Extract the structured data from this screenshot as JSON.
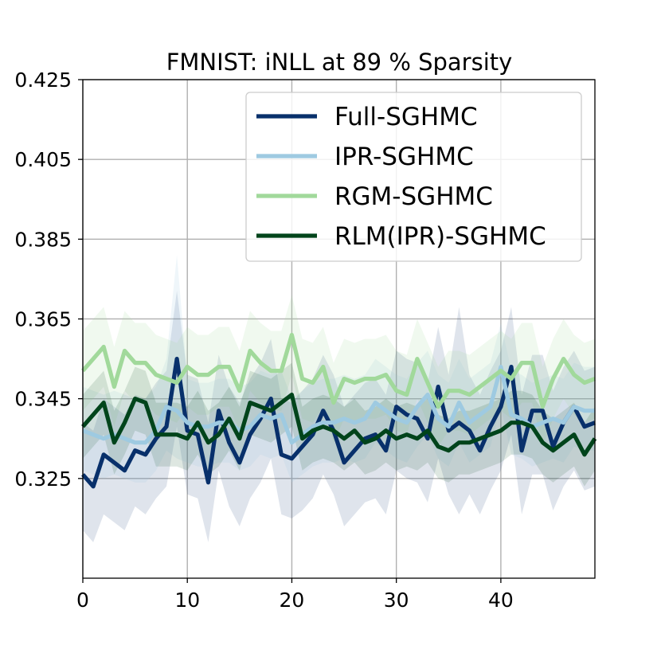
{
  "chart_data": {
    "type": "line",
    "title": "FMNIST: iNLL at 89 % Sparsity",
    "xlabel": "",
    "ylabel": "",
    "xlim": [
      0,
      49
    ],
    "ylim": [
      0.3,
      0.425
    ],
    "xticks": [
      0,
      10,
      20,
      30,
      40
    ],
    "yticks": [
      0.325,
      0.345,
      0.365,
      0.385,
      0.405,
      0.425
    ],
    "xtick_labels": [
      "0",
      "10",
      "20",
      "30",
      "40"
    ],
    "ytick_labels": [
      "0.325",
      "0.345",
      "0.365",
      "0.385",
      "0.405",
      "0.425"
    ],
    "grid": true,
    "legend_position": "upper-right",
    "x": [
      0,
      1,
      2,
      3,
      4,
      5,
      6,
      7,
      8,
      9,
      10,
      11,
      12,
      13,
      14,
      15,
      16,
      17,
      18,
      19,
      20,
      21,
      22,
      23,
      24,
      25,
      26,
      27,
      28,
      29,
      30,
      31,
      32,
      33,
      34,
      35,
      36,
      37,
      38,
      39,
      40,
      41,
      42,
      43,
      44,
      45,
      46,
      47,
      48,
      49
    ],
    "series": [
      {
        "name": "Full-SGHMC",
        "color": "#08306b",
        "band_opacity": 0.13,
        "values": [
          0.326,
          0.323,
          0.331,
          0.329,
          0.327,
          0.332,
          0.331,
          0.335,
          0.338,
          0.355,
          0.337,
          0.336,
          0.324,
          0.342,
          0.334,
          0.329,
          0.336,
          0.34,
          0.345,
          0.331,
          0.33,
          0.333,
          0.336,
          0.342,
          0.337,
          0.329,
          0.332,
          0.335,
          0.336,
          0.332,
          0.343,
          0.341,
          0.34,
          0.335,
          0.348,
          0.337,
          0.339,
          0.337,
          0.332,
          0.338,
          0.343,
          0.353,
          0.332,
          0.342,
          0.342,
          0.333,
          0.339,
          0.343,
          0.338,
          0.339
        ],
        "lower": [
          0.312,
          0.309,
          0.316,
          0.314,
          0.312,
          0.318,
          0.316,
          0.32,
          0.323,
          0.338,
          0.321,
          0.32,
          0.309,
          0.327,
          0.318,
          0.313,
          0.32,
          0.324,
          0.33,
          0.316,
          0.315,
          0.317,
          0.32,
          0.326,
          0.321,
          0.313,
          0.316,
          0.319,
          0.32,
          0.316,
          0.327,
          0.325,
          0.324,
          0.319,
          0.33,
          0.321,
          0.316,
          0.321,
          0.316,
          0.322,
          0.327,
          0.336,
          0.316,
          0.326,
          0.326,
          0.317,
          0.323,
          0.327,
          0.322,
          0.323
        ],
        "upper": [
          0.339,
          0.337,
          0.345,
          0.343,
          0.341,
          0.346,
          0.345,
          0.349,
          0.352,
          0.372,
          0.351,
          0.35,
          0.339,
          0.356,
          0.348,
          0.344,
          0.35,
          0.354,
          0.36,
          0.345,
          0.344,
          0.347,
          0.35,
          0.356,
          0.351,
          0.343,
          0.346,
          0.349,
          0.35,
          0.346,
          0.357,
          0.355,
          0.354,
          0.349,
          0.363,
          0.351,
          0.368,
          0.351,
          0.346,
          0.352,
          0.357,
          0.368,
          0.346,
          0.356,
          0.356,
          0.347,
          0.353,
          0.357,
          0.352,
          0.353
        ]
      },
      {
        "name": "IPR-SGHMC",
        "color": "#9ecae1",
        "band_opacity": 0.16,
        "values": [
          0.337,
          0.336,
          0.335,
          0.336,
          0.335,
          0.334,
          0.334,
          0.337,
          0.343,
          0.342,
          0.339,
          0.338,
          0.338,
          0.339,
          0.339,
          0.337,
          0.338,
          0.341,
          0.34,
          0.341,
          0.334,
          0.336,
          0.338,
          0.339,
          0.339,
          0.34,
          0.339,
          0.34,
          0.344,
          0.342,
          0.34,
          0.339,
          0.343,
          0.346,
          0.34,
          0.338,
          0.344,
          0.339,
          0.341,
          0.343,
          0.353,
          0.341,
          0.34,
          0.338,
          0.339,
          0.34,
          0.339,
          0.343,
          0.342,
          0.342
        ],
        "lower": [
          0.327,
          0.326,
          0.325,
          0.326,
          0.325,
          0.324,
          0.324,
          0.327,
          0.332,
          0.33,
          0.329,
          0.328,
          0.328,
          0.329,
          0.329,
          0.327,
          0.328,
          0.331,
          0.33,
          0.331,
          0.324,
          0.326,
          0.328,
          0.329,
          0.329,
          0.33,
          0.329,
          0.33,
          0.334,
          0.332,
          0.33,
          0.329,
          0.333,
          0.336,
          0.33,
          0.328,
          0.334,
          0.329,
          0.331,
          0.333,
          0.343,
          0.331,
          0.33,
          0.328,
          0.329,
          0.33,
          0.329,
          0.333,
          0.332,
          0.332
        ],
        "upper": [
          0.348,
          0.347,
          0.346,
          0.347,
          0.346,
          0.345,
          0.345,
          0.348,
          0.355,
          0.381,
          0.35,
          0.349,
          0.349,
          0.35,
          0.35,
          0.348,
          0.349,
          0.352,
          0.351,
          0.352,
          0.345,
          0.347,
          0.349,
          0.35,
          0.35,
          0.351,
          0.35,
          0.351,
          0.355,
          0.353,
          0.351,
          0.35,
          0.354,
          0.357,
          0.351,
          0.349,
          0.355,
          0.35,
          0.352,
          0.354,
          0.364,
          0.352,
          0.351,
          0.349,
          0.35,
          0.351,
          0.35,
          0.354,
          0.353,
          0.353
        ]
      },
      {
        "name": "RGM-SGHMC",
        "color": "#a1d99b",
        "band_opacity": 0.16,
        "values": [
          0.352,
          0.355,
          0.358,
          0.348,
          0.357,
          0.354,
          0.354,
          0.351,
          0.35,
          0.349,
          0.353,
          0.351,
          0.351,
          0.353,
          0.353,
          0.347,
          0.357,
          0.354,
          0.352,
          0.352,
          0.361,
          0.35,
          0.349,
          0.353,
          0.344,
          0.35,
          0.349,
          0.35,
          0.35,
          0.351,
          0.347,
          0.346,
          0.355,
          0.349,
          0.343,
          0.347,
          0.347,
          0.346,
          0.348,
          0.35,
          0.352,
          0.35,
          0.354,
          0.354,
          0.343,
          0.35,
          0.355,
          0.351,
          0.349,
          0.35
        ],
        "lower": [
          0.342,
          0.345,
          0.348,
          0.338,
          0.347,
          0.344,
          0.344,
          0.341,
          0.34,
          0.339,
          0.343,
          0.341,
          0.341,
          0.343,
          0.343,
          0.337,
          0.347,
          0.344,
          0.342,
          0.342,
          0.351,
          0.34,
          0.339,
          0.343,
          0.334,
          0.34,
          0.339,
          0.34,
          0.34,
          0.341,
          0.337,
          0.336,
          0.345,
          0.339,
          0.333,
          0.337,
          0.337,
          0.336,
          0.338,
          0.34,
          0.342,
          0.34,
          0.344,
          0.344,
          0.333,
          0.34,
          0.345,
          0.341,
          0.339,
          0.34
        ],
        "upper": [
          0.362,
          0.365,
          0.368,
          0.358,
          0.367,
          0.364,
          0.364,
          0.361,
          0.36,
          0.359,
          0.363,
          0.361,
          0.361,
          0.363,
          0.363,
          0.357,
          0.367,
          0.364,
          0.362,
          0.362,
          0.371,
          0.36,
          0.359,
          0.363,
          0.354,
          0.36,
          0.359,
          0.36,
          0.36,
          0.361,
          0.357,
          0.356,
          0.365,
          0.359,
          0.353,
          0.357,
          0.357,
          0.356,
          0.358,
          0.36,
          0.362,
          0.36,
          0.364,
          0.364,
          0.353,
          0.36,
          0.365,
          0.361,
          0.359,
          0.36
        ]
      },
      {
        "name": "RLM(IPR)-SGHMC",
        "color": "#00441b",
        "band_opacity": 0.13,
        "values": [
          0.338,
          0.341,
          0.344,
          0.334,
          0.339,
          0.345,
          0.344,
          0.336,
          0.336,
          0.336,
          0.335,
          0.339,
          0.334,
          0.336,
          0.34,
          0.335,
          0.344,
          0.343,
          0.342,
          0.344,
          0.346,
          0.335,
          0.337,
          0.338,
          0.337,
          0.335,
          0.337,
          0.334,
          0.335,
          0.337,
          0.335,
          0.336,
          0.335,
          0.337,
          0.333,
          0.332,
          0.334,
          0.334,
          0.335,
          0.336,
          0.337,
          0.339,
          0.339,
          0.338,
          0.334,
          0.332,
          0.334,
          0.336,
          0.331,
          0.335
        ],
        "lower": [
          0.33,
          0.333,
          0.336,
          0.326,
          0.331,
          0.337,
          0.336,
          0.328,
          0.328,
          0.328,
          0.327,
          0.331,
          0.326,
          0.328,
          0.332,
          0.327,
          0.336,
          0.335,
          0.334,
          0.336,
          0.338,
          0.327,
          0.329,
          0.33,
          0.329,
          0.327,
          0.329,
          0.326,
          0.327,
          0.329,
          0.327,
          0.328,
          0.327,
          0.329,
          0.325,
          0.324,
          0.326,
          0.326,
          0.327,
          0.328,
          0.329,
          0.331,
          0.331,
          0.33,
          0.326,
          0.324,
          0.326,
          0.328,
          0.323,
          0.327
        ],
        "upper": [
          0.346,
          0.349,
          0.352,
          0.342,
          0.347,
          0.353,
          0.352,
          0.344,
          0.344,
          0.344,
          0.343,
          0.347,
          0.342,
          0.344,
          0.348,
          0.343,
          0.352,
          0.351,
          0.35,
          0.352,
          0.354,
          0.343,
          0.345,
          0.346,
          0.345,
          0.343,
          0.345,
          0.342,
          0.343,
          0.345,
          0.343,
          0.344,
          0.343,
          0.345,
          0.341,
          0.34,
          0.342,
          0.342,
          0.343,
          0.344,
          0.345,
          0.347,
          0.347,
          0.346,
          0.342,
          0.34,
          0.342,
          0.344,
          0.339,
          0.343
        ]
      }
    ]
  }
}
